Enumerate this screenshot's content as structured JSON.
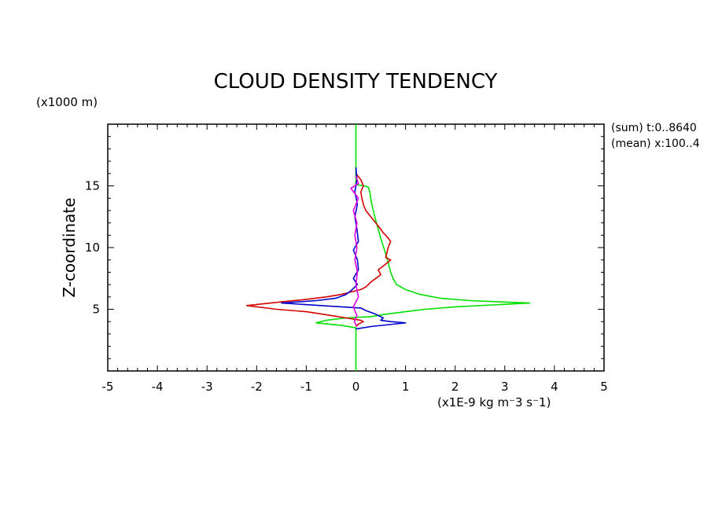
{
  "chart_data": {
    "type": "line",
    "title": "CLOUD DENSITY TENDENCY",
    "xlabel": "(x1E-9 kg m⁻3 s⁻1)",
    "ylabel": "Z-coordinate",
    "yunit": "(x1000 m)",
    "xlim": [
      -5,
      5
    ],
    "ylim": [
      0,
      20
    ],
    "xticks": [
      -5,
      -4,
      -3,
      -2,
      -1,
      0,
      1,
      2,
      3,
      4,
      5
    ],
    "yticks": [
      5,
      10,
      15
    ],
    "annotations": [
      "(sum) t:0..8640",
      "(mean) x:100..4"
    ],
    "grid": false,
    "colors": {
      "green": "#00e000",
      "red": "#d40000",
      "blue": "#0000cc",
      "magenta": "#e000e0"
    },
    "series": [
      {
        "color": "green",
        "x": [
          0,
          0,
          0,
          0.18,
          0.25,
          0.28,
          0.32,
          0.38,
          0.45,
          0.52,
          0.6,
          0.65,
          0.7,
          0.75,
          0.82,
          1.0,
          1.3,
          1.7,
          2.3,
          3.5,
          2.0,
          1.4,
          1.0,
          0.6,
          0.3,
          -0.2,
          -0.6,
          -0.8,
          -0.3,
          0,
          0,
          0
        ],
        "y": [
          20,
          17.5,
          15.1,
          15.0,
          14.9,
          14.5,
          13.5,
          12.5,
          11.5,
          10.5,
          9.5,
          8.8,
          8.0,
          7.5,
          7.0,
          6.6,
          6.2,
          5.9,
          5.7,
          5.5,
          5.2,
          5.0,
          4.8,
          4.6,
          4.4,
          4.3,
          4.1,
          3.9,
          3.7,
          3.5,
          2.0,
          0
        ]
      },
      {
        "color": "red",
        "x": [
          0,
          0.1,
          0.15,
          0.1,
          0.12,
          0.15,
          0.2,
          0.3,
          0.4,
          0.5,
          0.55,
          0.6,
          0.7,
          0.65,
          0.62,
          0.6,
          0.7,
          0.55,
          0.45,
          0.5,
          0.4,
          0.3,
          0.2,
          0.1,
          -0.1,
          -0.3,
          -0.6,
          -1.0,
          -1.5,
          -2.2,
          -1.6,
          -1.0,
          -0.5,
          -0.2,
          0.1,
          0.15,
          0.05,
          0
        ],
        "y": [
          16.0,
          15.5,
          15.0,
          14.5,
          14.0,
          13.5,
          13.0,
          12.5,
          12.0,
          11.5,
          11.2,
          11.0,
          10.5,
          10.0,
          9.5,
          9.2,
          9.0,
          8.5,
          8.2,
          7.8,
          7.5,
          7.2,
          6.8,
          6.6,
          6.4,
          6.2,
          6.0,
          5.8,
          5.6,
          5.3,
          5.0,
          4.8,
          4.5,
          4.3,
          4.1,
          4.0,
          3.8,
          3.6
        ]
      },
      {
        "color": "blue",
        "x": [
          0,
          0.02,
          -0.02,
          0.03,
          -0.02,
          0.02,
          0.05,
          -0.05,
          0.03,
          0.05,
          -0.05,
          0.03,
          -0.1,
          -0.2,
          -0.4,
          -0.8,
          -1.5,
          -0.7,
          0.1,
          0.2,
          0.4,
          0.55,
          0.5,
          0.7,
          1.0,
          0.3,
          0
        ],
        "y": [
          16.5,
          15.5,
          14.5,
          13.5,
          12.5,
          11.5,
          10.5,
          9.8,
          9.0,
          8.2,
          7.5,
          7.0,
          6.5,
          6.2,
          5.9,
          5.7,
          5.5,
          5.3,
          5.1,
          4.9,
          4.6,
          4.3,
          4.1,
          4.0,
          3.9,
          3.6,
          3.4
        ]
      },
      {
        "color": "magenta",
        "x": [
          0,
          0.05,
          -0.1,
          0.05,
          -0.05,
          0.02,
          -0.02,
          0.02,
          -0.02,
          0.03,
          0.0,
          0.05,
          -0.05,
          0.02,
          -0.03,
          0.02
        ],
        "y": [
          15.8,
          15.2,
          14.8,
          14.0,
          13.0,
          12.0,
          11.0,
          10.0,
          9.0,
          8.0,
          7.0,
          6.0,
          5.2,
          4.5,
          4.0,
          3.6
        ]
      }
    ]
  }
}
